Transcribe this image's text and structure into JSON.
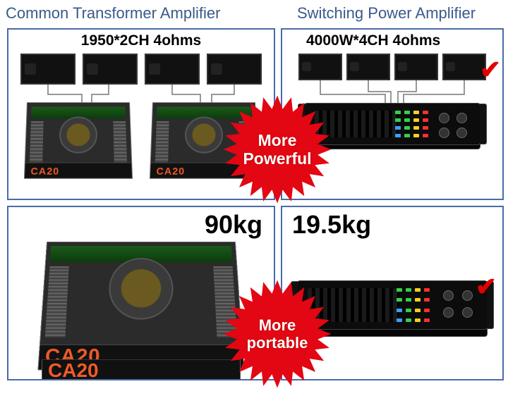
{
  "titles": {
    "left": "Common Transformer Amplifier",
    "right": "Switching Power Amplifier"
  },
  "panels": {
    "top_left": {
      "spec": "1950*2CH 4ohms",
      "amp_model": "CA20",
      "speaker_count": 4,
      "amp_count": 2
    },
    "top_right": {
      "spec": "4000W*4CH 4ohms",
      "speaker_count": 4,
      "amp_count": 1,
      "checked": true
    },
    "bottom_left": {
      "weight": "90kg",
      "amp_model_1": "CA20",
      "amp_model_2": "CA20"
    },
    "bottom_right": {
      "weight": "19.5kg",
      "checked": true
    }
  },
  "badges": {
    "top": "More\nPowerful",
    "bottom": "More\nportable"
  },
  "colors": {
    "panel_border": "#4a6ba8",
    "title_text": "#3a5a8a",
    "burst_fill": "#e30613",
    "burst_text": "#ffffff",
    "check": "#e40000",
    "amp_front_text": "#f05a28",
    "led_green": "#35d04a",
    "led_yellow": "#f5d020",
    "led_blue": "#3aa0ff",
    "led_red": "#ff3030"
  },
  "check_glyph": "✔"
}
